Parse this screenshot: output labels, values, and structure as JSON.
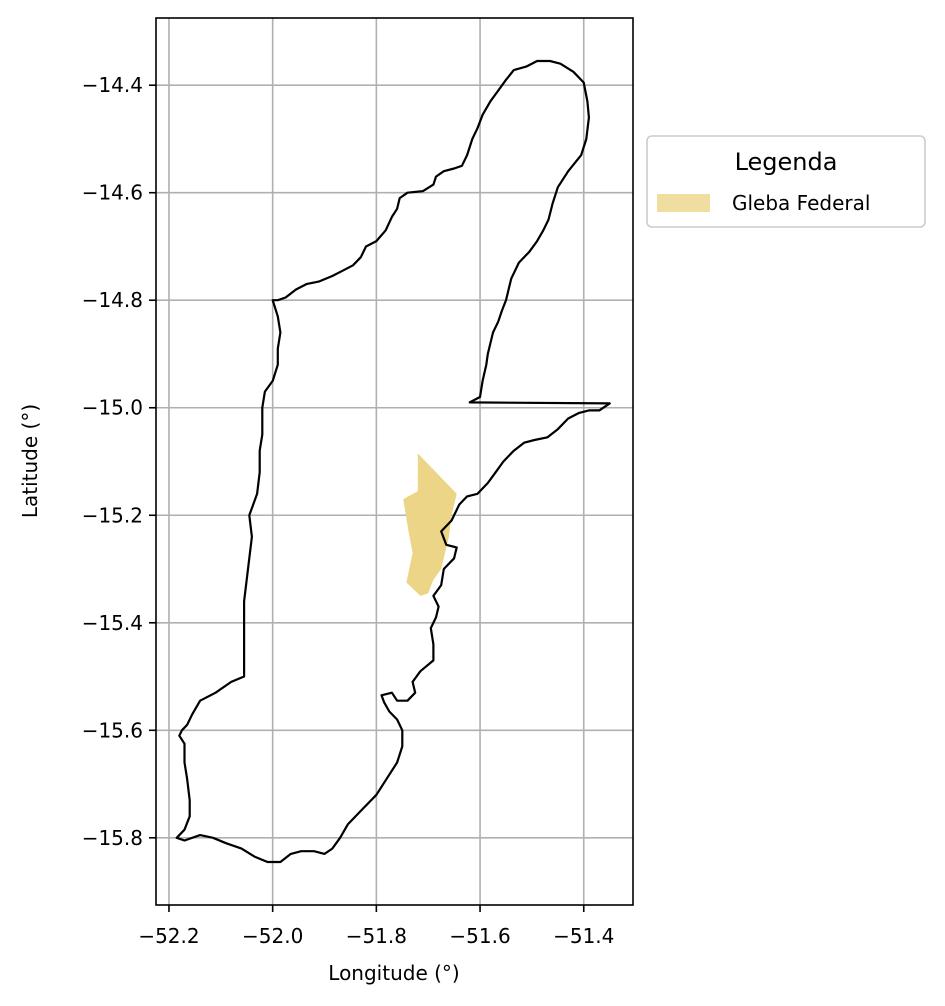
{
  "chart_data": {
    "type": "map",
    "xlabel": "Longitude (°)",
    "ylabel": "Latitude (°)",
    "xlim": [
      -52.225,
      -51.305
    ],
    "ylim": [
      -15.925,
      -14.275
    ],
    "grid": true,
    "x_ticks": [
      {
        "value": -52.2,
        "label": "−52.2"
      },
      {
        "value": -52.0,
        "label": "−52.0"
      },
      {
        "value": -51.8,
        "label": "−51.8"
      },
      {
        "value": -51.6,
        "label": "−51.6"
      },
      {
        "value": -51.4,
        "label": "−51.4"
      }
    ],
    "y_ticks": [
      {
        "value": -14.4,
        "label": "−14.4"
      },
      {
        "value": -14.6,
        "label": "−14.6"
      },
      {
        "value": -14.8,
        "label": "−14.8"
      },
      {
        "value": -15.0,
        "label": "−15.0"
      },
      {
        "value": -15.2,
        "label": "−15.2"
      },
      {
        "value": -15.4,
        "label": "−15.4"
      },
      {
        "value": -15.6,
        "label": "−15.6"
      },
      {
        "value": -15.8,
        "label": "−15.8"
      }
    ],
    "legend": {
      "title": "Legenda",
      "placement": "outside-upper-right",
      "entries": [
        {
          "label": "Gleba Federal",
          "color": "#f0dea0"
        }
      ]
    },
    "boundary": {
      "stroke": "#000000",
      "points": [
        [
          -51.62,
          -14.99
        ],
        [
          -51.6,
          -14.98
        ],
        [
          -51.595,
          -14.95
        ],
        [
          -51.588,
          -14.92
        ],
        [
          -51.585,
          -14.9
        ],
        [
          -51.58,
          -14.88
        ],
        [
          -51.575,
          -14.86
        ],
        [
          -51.565,
          -14.84
        ],
        [
          -51.558,
          -14.82
        ],
        [
          -51.55,
          -14.8
        ],
        [
          -51.545,
          -14.78
        ],
        [
          -51.54,
          -14.76
        ],
        [
          -51.525,
          -14.73
        ],
        [
          -51.505,
          -14.71
        ],
        [
          -51.49,
          -14.69
        ],
        [
          -51.478,
          -14.67
        ],
        [
          -51.468,
          -14.65
        ],
        [
          -51.46,
          -14.62
        ],
        [
          -51.45,
          -14.59
        ],
        [
          -51.43,
          -14.56
        ],
        [
          -51.405,
          -14.53
        ],
        [
          -51.395,
          -14.5
        ],
        [
          -51.39,
          -14.46
        ],
        [
          -51.393,
          -14.43
        ],
        [
          -51.4,
          -14.395
        ],
        [
          -51.42,
          -14.375
        ],
        [
          -51.445,
          -14.36
        ],
        [
          -51.465,
          -14.355
        ],
        [
          -51.49,
          -14.355
        ],
        [
          -51.51,
          -14.365
        ],
        [
          -51.535,
          -14.372
        ],
        [
          -51.55,
          -14.39
        ],
        [
          -51.565,
          -14.41
        ],
        [
          -51.58,
          -14.43
        ],
        [
          -51.595,
          -14.455
        ],
        [
          -51.605,
          -14.48
        ],
        [
          -51.615,
          -14.5
        ],
        [
          -51.625,
          -14.53
        ],
        [
          -51.635,
          -14.55
        ],
        [
          -51.65,
          -14.555
        ],
        [
          -51.67,
          -14.56
        ],
        [
          -51.685,
          -14.57
        ],
        [
          -51.69,
          -14.585
        ],
        [
          -51.71,
          -14.597
        ],
        [
          -51.74,
          -14.6
        ],
        [
          -51.755,
          -14.61
        ],
        [
          -51.76,
          -14.63
        ],
        [
          -51.77,
          -14.645
        ],
        [
          -51.782,
          -14.67
        ],
        [
          -51.8,
          -14.69
        ],
        [
          -51.82,
          -14.7
        ],
        [
          -51.83,
          -14.72
        ],
        [
          -51.845,
          -14.735
        ],
        [
          -51.865,
          -14.745
        ],
        [
          -51.885,
          -14.755
        ],
        [
          -51.91,
          -14.765
        ],
        [
          -51.935,
          -14.77
        ],
        [
          -51.955,
          -14.78
        ],
        [
          -51.975,
          -14.795
        ],
        [
          -51.99,
          -14.8
        ],
        [
          -52.0,
          -14.8
        ],
        [
          -51.99,
          -14.83
        ],
        [
          -51.985,
          -14.86
        ],
        [
          -51.99,
          -14.89
        ],
        [
          -51.99,
          -14.92
        ],
        [
          -52.0,
          -14.95
        ],
        [
          -52.015,
          -14.97
        ],
        [
          -52.02,
          -15.0
        ],
        [
          -52.02,
          -15.05
        ],
        [
          -52.025,
          -15.08
        ],
        [
          -52.025,
          -15.12
        ],
        [
          -52.03,
          -15.16
        ],
        [
          -52.045,
          -15.2
        ],
        [
          -52.04,
          -15.24
        ],
        [
          -52.045,
          -15.28
        ],
        [
          -52.05,
          -15.32
        ],
        [
          -52.055,
          -15.36
        ],
        [
          -52.055,
          -15.4
        ],
        [
          -52.055,
          -15.44
        ],
        [
          -52.055,
          -15.48
        ],
        [
          -52.055,
          -15.5
        ],
        [
          -52.08,
          -15.51
        ],
        [
          -52.11,
          -15.53
        ],
        [
          -52.14,
          -15.545
        ],
        [
          -52.155,
          -15.57
        ],
        [
          -52.165,
          -15.59
        ],
        [
          -52.175,
          -15.6
        ],
        [
          -52.18,
          -15.61
        ],
        [
          -52.17,
          -15.625
        ],
        [
          -52.17,
          -15.66
        ],
        [
          -52.165,
          -15.69
        ],
        [
          -52.16,
          -15.73
        ],
        [
          -52.16,
          -15.76
        ],
        [
          -52.17,
          -15.785
        ],
        [
          -52.185,
          -15.8
        ],
        [
          -52.17,
          -15.805
        ],
        [
          -52.14,
          -15.795
        ],
        [
          -52.115,
          -15.8
        ],
        [
          -52.09,
          -15.81
        ],
        [
          -52.06,
          -15.82
        ],
        [
          -52.035,
          -15.835
        ],
        [
          -52.01,
          -15.845
        ],
        [
          -51.985,
          -15.845
        ],
        [
          -51.965,
          -15.83
        ],
        [
          -51.945,
          -15.825
        ],
        [
          -51.92,
          -15.825
        ],
        [
          -51.9,
          -15.83
        ],
        [
          -51.885,
          -15.82
        ],
        [
          -51.87,
          -15.8
        ],
        [
          -51.855,
          -15.775
        ],
        [
          -51.83,
          -15.75
        ],
        [
          -51.8,
          -15.72
        ],
        [
          -51.78,
          -15.69
        ],
        [
          -51.76,
          -15.66
        ],
        [
          -51.75,
          -15.63
        ],
        [
          -51.75,
          -15.6
        ],
        [
          -51.76,
          -15.58
        ],
        [
          -51.775,
          -15.565
        ],
        [
          -51.785,
          -15.548
        ],
        [
          -51.79,
          -15.535
        ],
        [
          -51.77,
          -15.53
        ],
        [
          -51.76,
          -15.545
        ],
        [
          -51.74,
          -15.545
        ],
        [
          -51.725,
          -15.53
        ],
        [
          -51.73,
          -15.51
        ],
        [
          -51.715,
          -15.49
        ],
        [
          -51.69,
          -15.47
        ],
        [
          -51.69,
          -15.44
        ],
        [
          -51.695,
          -15.41
        ],
        [
          -51.685,
          -15.39
        ],
        [
          -51.68,
          -15.37
        ],
        [
          -51.69,
          -15.35
        ],
        [
          -51.675,
          -15.33
        ],
        [
          -51.67,
          -15.3
        ],
        [
          -51.65,
          -15.28
        ],
        [
          -51.645,
          -15.26
        ],
        [
          -51.665,
          -15.255
        ],
        [
          -51.675,
          -15.23
        ],
        [
          -51.655,
          -15.21
        ],
        [
          -51.64,
          -15.18
        ],
        [
          -51.625,
          -15.165
        ],
        [
          -51.605,
          -15.16
        ],
        [
          -51.585,
          -15.14
        ],
        [
          -51.57,
          -15.12
        ],
        [
          -51.555,
          -15.1
        ],
        [
          -51.535,
          -15.08
        ],
        [
          -51.515,
          -15.065
        ],
        [
          -51.495,
          -15.06
        ],
        [
          -51.47,
          -15.055
        ],
        [
          -51.45,
          -15.04
        ],
        [
          -51.43,
          -15.02
        ],
        [
          -51.41,
          -15.01
        ],
        [
          -51.39,
          -15.005
        ],
        [
          -51.37,
          -15.005
        ],
        [
          -51.35,
          -14.992
        ],
        [
          -51.62,
          -14.99
        ]
      ]
    },
    "federal_land": {
      "name": "Gleba Federal",
      "fill": "#ecd586",
      "points": [
        [
          -51.72,
          -15.085
        ],
        [
          -51.645,
          -15.16
        ],
        [
          -51.655,
          -15.2
        ],
        [
          -51.66,
          -15.24
        ],
        [
          -51.665,
          -15.26
        ],
        [
          -51.675,
          -15.3
        ],
        [
          -51.69,
          -15.32
        ],
        [
          -51.7,
          -15.345
        ],
        [
          -51.715,
          -15.35
        ],
        [
          -51.742,
          -15.325
        ],
        [
          -51.73,
          -15.27
        ],
        [
          -51.738,
          -15.23
        ],
        [
          -51.748,
          -15.17
        ],
        [
          -51.72,
          -15.155
        ]
      ]
    }
  }
}
